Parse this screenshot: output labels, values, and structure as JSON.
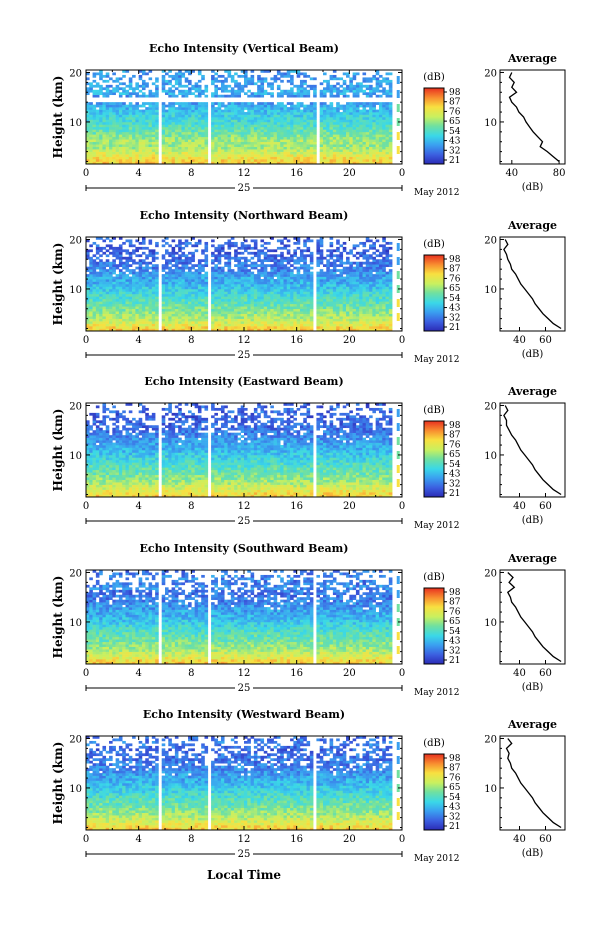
{
  "figure": {
    "xlabel": "Local Time",
    "date_day": "25",
    "date_month": "May 2012",
    "avg_title": "Average",
    "avg_xlabel": "(dB)",
    "cb_label": "(dB)",
    "ylabel": "Height (km)"
  },
  "chart_data": [
    {
      "type": "heatmap",
      "title": "Echo Intensity (Vertical Beam)",
      "ylabel": "Height (km)",
      "xticks": [
        "0",
        "4",
        "8",
        "12",
        "16",
        "20",
        "0"
      ],
      "yticks": [
        "10",
        "20"
      ],
      "xlim": [
        0,
        24
      ],
      "ylim": [
        1.5,
        20.5
      ],
      "colorbar": {
        "label": "(dB)",
        "ticks": [
          "98",
          "87",
          "76",
          "65",
          "54",
          "43",
          "32",
          "21"
        ],
        "range": [
          21,
          98
        ]
      },
      "gaps_hours": [
        [
          2.4,
          2.6
        ],
        [
          5.6,
          5.8
        ],
        [
          9.2,
          9.4
        ],
        [
          17.2,
          17.3
        ],
        [
          17.6,
          17.8
        ]
      ],
      "average_profile": {
        "xticks": [
          "40",
          "80"
        ],
        "xlim": [
          30,
          85
        ],
        "yticks": [
          "10",
          "20"
        ],
        "heights": [
          2,
          3,
          4,
          5,
          6,
          7,
          8,
          9,
          10,
          11,
          12,
          13,
          14,
          15,
          16,
          17,
          18,
          19,
          20
        ],
        "values": [
          80,
          75,
          70,
          64,
          66,
          62,
          58,
          55,
          52,
          50,
          46,
          44,
          40,
          38,
          44,
          40,
          42,
          38,
          40
        ]
      }
    },
    {
      "type": "heatmap",
      "title": "Echo Intensity (Northward Beam)",
      "ylabel": "Height (km)",
      "xticks": [
        "0",
        "4",
        "8",
        "12",
        "16",
        "20",
        "0"
      ],
      "yticks": [
        "10",
        "20"
      ],
      "xlim": [
        0,
        24
      ],
      "ylim": [
        1.5,
        20.5
      ],
      "colorbar": {
        "label": "(dB)",
        "ticks": [
          "98",
          "87",
          "76",
          "65",
          "54",
          "43",
          "32",
          "21"
        ],
        "range": [
          21,
          98
        ]
      },
      "gaps_hours": [
        [
          2.4,
          2.6
        ],
        [
          5.6,
          5.8
        ],
        [
          9.3,
          9.5
        ],
        [
          16.9,
          17.0
        ],
        [
          17.3,
          17.5
        ]
      ],
      "average_profile": {
        "xticks": [
          "40",
          "60"
        ],
        "xlim": [
          25,
          75
        ],
        "yticks": [
          "10",
          "20"
        ],
        "heights": [
          2,
          3,
          4,
          5,
          6,
          7,
          8,
          9,
          10,
          11,
          12,
          13,
          14,
          15,
          16,
          17,
          18,
          19,
          20
        ],
        "values": [
          72,
          66,
          62,
          58,
          55,
          52,
          50,
          47,
          44,
          41,
          39,
          37,
          34,
          33,
          31,
          30,
          28,
          31,
          29
        ]
      }
    },
    {
      "type": "heatmap",
      "title": "Echo Intensity (Eastward Beam)",
      "ylabel": "Height (km)",
      "xticks": [
        "0",
        "4",
        "8",
        "12",
        "16",
        "20",
        "0"
      ],
      "yticks": [
        "10",
        "20"
      ],
      "xlim": [
        0,
        24
      ],
      "ylim": [
        1.5,
        20.5
      ],
      "colorbar": {
        "label": "(dB)",
        "ticks": [
          "98",
          "87",
          "76",
          "65",
          "54",
          "43",
          "32",
          "21"
        ],
        "range": [
          21,
          98
        ]
      },
      "gaps_hours": [
        [
          2.4,
          2.6
        ],
        [
          5.6,
          5.8
        ],
        [
          9.3,
          9.5
        ],
        [
          16.9,
          17.0
        ],
        [
          17.3,
          17.5
        ]
      ],
      "average_profile": {
        "xticks": [
          "40",
          "60"
        ],
        "xlim": [
          25,
          75
        ],
        "yticks": [
          "10",
          "20"
        ],
        "heights": [
          2,
          3,
          4,
          5,
          6,
          7,
          8,
          9,
          10,
          11,
          12,
          13,
          14,
          15,
          16,
          17,
          18,
          19,
          20
        ],
        "values": [
          72,
          66,
          62,
          58,
          55,
          52,
          50,
          47,
          44,
          41,
          39,
          37,
          34,
          32,
          30,
          30,
          28,
          31,
          29
        ]
      }
    },
    {
      "type": "heatmap",
      "title": "Echo Intensity (Southward Beam)",
      "ylabel": "Height (km)",
      "xticks": [
        "0",
        "4",
        "8",
        "12",
        "16",
        "20",
        "0"
      ],
      "yticks": [
        "10",
        "20"
      ],
      "xlim": [
        0,
        24
      ],
      "ylim": [
        1.5,
        20.5
      ],
      "colorbar": {
        "label": "(dB)",
        "ticks": [
          "98",
          "87",
          "76",
          "65",
          "54",
          "43",
          "32",
          "21"
        ],
        "range": [
          21,
          98
        ]
      },
      "gaps_hours": [
        [
          2.4,
          2.6
        ],
        [
          5.6,
          5.8
        ],
        [
          9.3,
          9.5
        ],
        [
          16.9,
          17.0
        ],
        [
          17.3,
          17.5
        ]
      ],
      "average_profile": {
        "xticks": [
          "40",
          "60"
        ],
        "xlim": [
          25,
          75
        ],
        "yticks": [
          "10",
          "20"
        ],
        "heights": [
          2,
          3,
          4,
          5,
          6,
          7,
          8,
          9,
          10,
          11,
          12,
          13,
          14,
          15,
          16,
          17,
          18,
          19,
          20
        ],
        "values": [
          72,
          66,
          62,
          58,
          55,
          52,
          50,
          47,
          44,
          41,
          39,
          37,
          34,
          33,
          31,
          36,
          32,
          35,
          31
        ]
      }
    },
    {
      "type": "heatmap",
      "title": "Echo Intensity (Westward Beam)",
      "ylabel": "Height (km)",
      "xticks": [
        "0",
        "4",
        "8",
        "12",
        "16",
        "20",
        "0"
      ],
      "yticks": [
        "10",
        "20"
      ],
      "xlim": [
        0,
        24
      ],
      "ylim": [
        1.5,
        20.5
      ],
      "colorbar": {
        "label": "(dB)",
        "ticks": [
          "98",
          "87",
          "76",
          "65",
          "54",
          "43",
          "32",
          "21"
        ],
        "range": [
          21,
          98
        ]
      },
      "gaps_hours": [
        [
          2.4,
          2.6
        ],
        [
          5.6,
          5.8
        ],
        [
          9.3,
          9.5
        ],
        [
          16.9,
          17.0
        ],
        [
          17.3,
          17.5
        ]
      ],
      "average_profile": {
        "xticks": [
          "40",
          "60"
        ],
        "xlim": [
          25,
          75
        ],
        "yticks": [
          "10",
          "20"
        ],
        "heights": [
          2,
          3,
          4,
          5,
          6,
          7,
          8,
          9,
          10,
          11,
          12,
          13,
          14,
          15,
          16,
          17,
          18,
          19,
          20
        ],
        "values": [
          72,
          66,
          62,
          58,
          55,
          52,
          50,
          47,
          44,
          41,
          39,
          37,
          34,
          33,
          31,
          32,
          30,
          34,
          31
        ]
      }
    }
  ]
}
